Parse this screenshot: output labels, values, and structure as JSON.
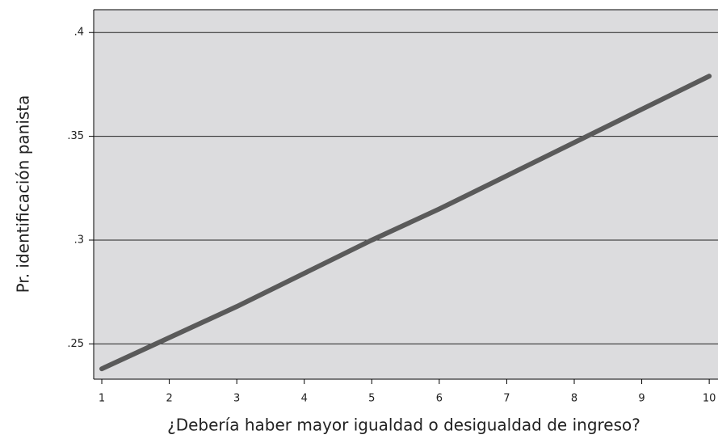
{
  "chart_data": {
    "type": "line",
    "x_label": "¿Debería haber mayor igualdad o desigualdad de ingreso?",
    "y_label": "Pr. identificación panista",
    "x": [
      1,
      2,
      3,
      4,
      5,
      6,
      7,
      8,
      9,
      10
    ],
    "series": [
      {
        "name": null,
        "color": "#5a5a5a",
        "values": [
          0.238,
          0.253,
          0.268,
          0.284,
          0.3,
          0.315,
          0.331,
          0.347,
          0.363,
          0.379
        ]
      }
    ],
    "xlim": [
      0.88,
      10.13
    ],
    "xticks": [
      1,
      2,
      3,
      4,
      5,
      6,
      7,
      8,
      9,
      10
    ],
    "ylim": [
      0.233,
      0.411
    ],
    "yticks": [
      {
        "value": 0.25,
        "label": ".25"
      },
      {
        "value": 0.3,
        "label": ".3"
      },
      {
        "value": 0.35,
        "label": ".35"
      },
      {
        "value": 0.4,
        "label": ".4"
      }
    ],
    "grid": true,
    "background": "#dcdcde"
  }
}
